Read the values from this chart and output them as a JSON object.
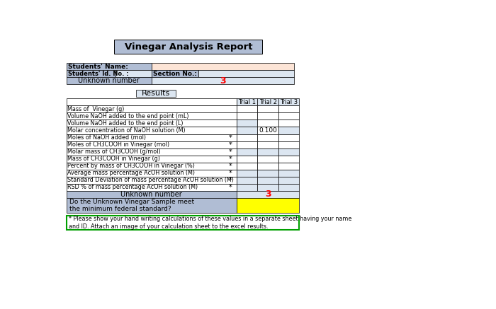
{
  "title": "Vinegar Analysis Report",
  "results_label": "Results",
  "student_info": {
    "name_label": "Students' Name:",
    "id_label": "Students' Id. No. :",
    "section_label": "Section No.:",
    "unknown_label": "Unknown number",
    "unknown_value": "3"
  },
  "trial_headers": [
    "Trial 1",
    "Trial 2",
    "Trial 3"
  ],
  "rows": [
    {
      "label": "Mass of  Vinegar (g)",
      "asterisk": false,
      "values": [
        "",
        "",
        ""
      ],
      "shading": [
        false,
        false,
        false
      ]
    },
    {
      "label": "Volume NaOH added to the end point (mL)",
      "asterisk": false,
      "values": [
        "",
        "",
        ""
      ],
      "shading": [
        false,
        false,
        false
      ]
    },
    {
      "label": "Volume NaOH added to the end point (L)",
      "asterisk": false,
      "values": [
        "",
        "",
        ""
      ],
      "shading": [
        true,
        false,
        false
      ]
    },
    {
      "label": "Molar concentration of NaOH solution (M)",
      "asterisk": false,
      "values": [
        "",
        "0.100",
        ""
      ],
      "shading": [
        true,
        false,
        true
      ]
    },
    {
      "label": "Moles of NaOH added (mol)",
      "asterisk": true,
      "values": [
        "",
        "",
        ""
      ],
      "shading": [
        false,
        false,
        false
      ]
    },
    {
      "label": "Moles of CH3COOH in Vinegar (mol)",
      "asterisk": true,
      "values": [
        "",
        "",
        ""
      ],
      "shading": [
        false,
        false,
        false
      ]
    },
    {
      "label": "Molar mass of CH3COOH (g/mol)",
      "asterisk": true,
      "values": [
        "",
        "",
        ""
      ],
      "shading": [
        true,
        true,
        true
      ]
    },
    {
      "label": "Mass of CH3COOH in Vinegar (g)",
      "asterisk": true,
      "values": [
        "",
        "",
        ""
      ],
      "shading": [
        false,
        false,
        false
      ]
    },
    {
      "label": "Percent by mass of CH3COOH in Vinegar (%)",
      "asterisk": true,
      "values": [
        "",
        "",
        ""
      ],
      "shading": [
        false,
        false,
        false
      ]
    },
    {
      "label": "Average mass percentage AcOH solution (M)",
      "asterisk": true,
      "values": [
        "",
        "",
        ""
      ],
      "shading": [
        true,
        true,
        true
      ]
    },
    {
      "label": "Standard Deviation of mass percentage AcOH solution (M)",
      "asterisk": true,
      "values": [
        "",
        "",
        ""
      ],
      "shading": [
        true,
        true,
        true
      ]
    },
    {
      "label": "RSD % of mass percentage AcOH solution (M)",
      "asterisk": true,
      "values": [
        "",
        "",
        ""
      ],
      "shading": [
        true,
        true,
        true
      ]
    }
  ],
  "unknown_bottom_label": "Unknown number",
  "unknown_bottom_value": "3",
  "question_label": "Do the Unknown Vinegar Sample meet\nthe minimum federal standard?",
  "footnote": "* Please show your hand writing calculations of these values in a separate sheet having your name\nand ID. Attach an image of your calculation sheet to the excel results.",
  "colors": {
    "title_bg": "#b0bdd4",
    "student_label_bg": "#b0bdd4",
    "student_name_bg": "#fce4d6",
    "student_id_bg": "#dce6f1",
    "unknown_row_label_bg": "#b0bdd4",
    "unknown_row_value_bg": "#dce6f1",
    "unknown_value_color": "#ff0000",
    "trial_header_bg": "#dce6f1",
    "row_shade_bg": "#dce6f1",
    "question_bg": "#ffff00",
    "footnote_border": "#00a000",
    "results_bg": "#dce6f1"
  }
}
